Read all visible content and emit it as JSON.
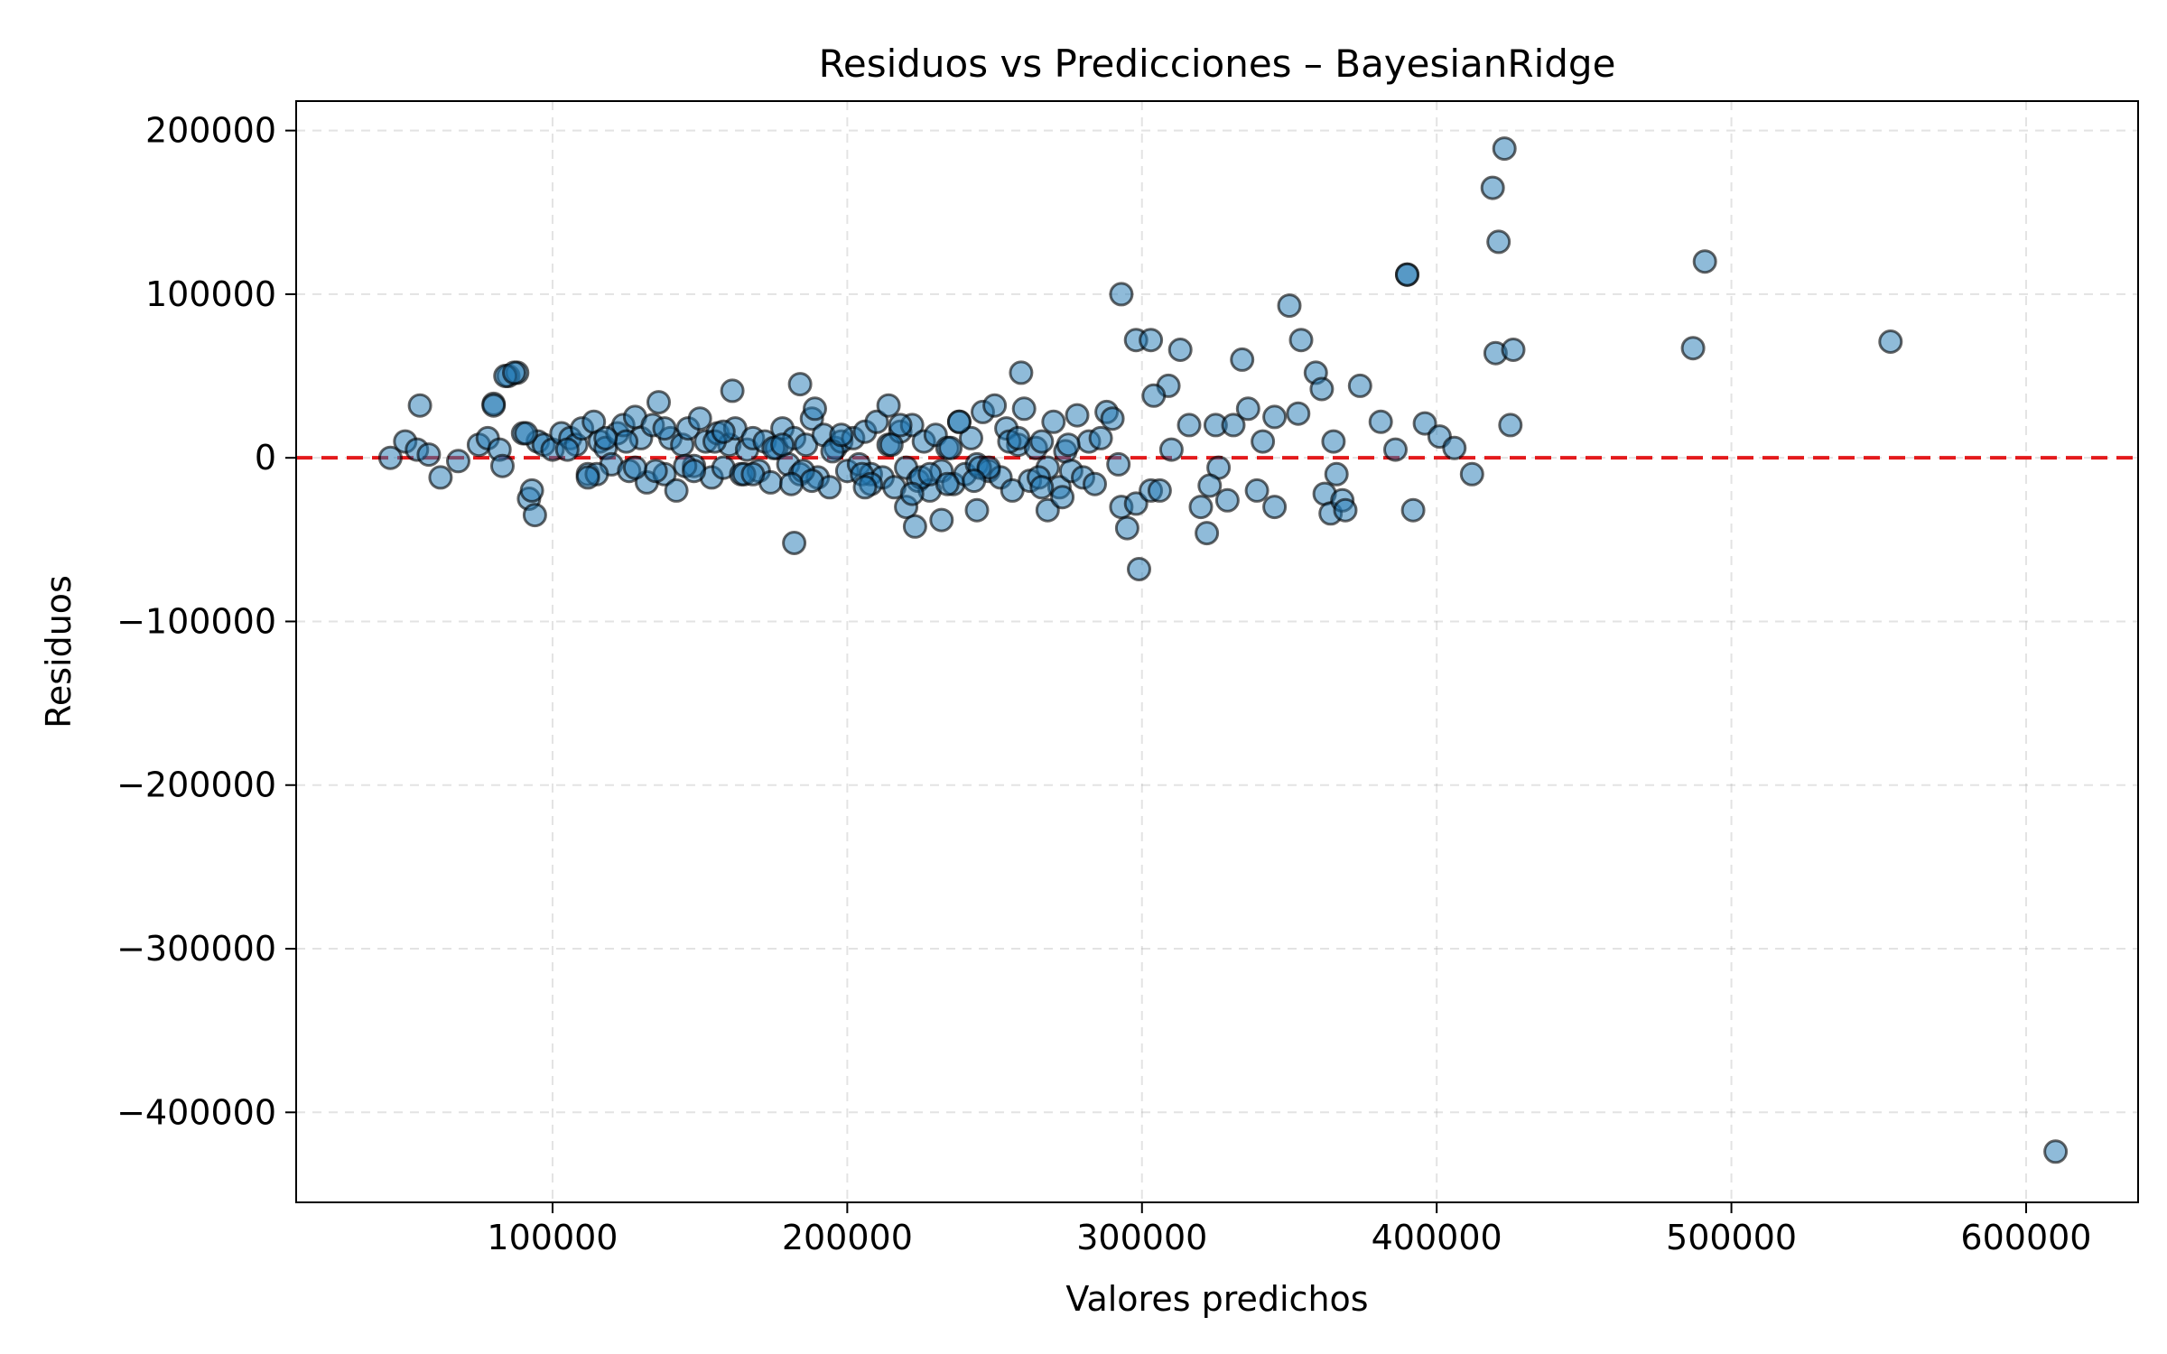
{
  "chart_data": {
    "type": "scatter",
    "title": "Residuos vs Predicciones – BayesianRidge",
    "xlabel": "Valores predichos",
    "ylabel": "Residuos",
    "xlim": [
      13000,
      638000
    ],
    "ylim": [
      -455000,
      218000
    ],
    "xticks": [
      100000,
      200000,
      300000,
      400000,
      500000,
      600000
    ],
    "yticks": [
      200000,
      100000,
      0,
      -100000,
      -200000,
      -300000,
      -400000
    ],
    "xtick_labels": [
      "100000",
      "200000",
      "300000",
      "400000",
      "500000",
      "600000"
    ],
    "ytick_labels": [
      "200000",
      "100000",
      "0",
      "−100000",
      "−200000",
      "−300000",
      "−400000"
    ],
    "grid": true,
    "marker_color": "#1f77b4",
    "marker_edge": "#000000",
    "reference_line": {
      "y": 0,
      "color": "#e41a1c",
      "style": "dashed"
    },
    "points": {
      "x": [
        45000,
        50000,
        55000,
        54000,
        58000,
        62000,
        68000,
        75000,
        78000,
        80000,
        82000,
        85000,
        88000,
        92000,
        93000,
        94000,
        95000,
        83000,
        90000,
        97000,
        100000,
        103000,
        106000,
        108000,
        110000,
        112000,
        114000,
        116000,
        118000,
        120000,
        122000,
        124000,
        126000,
        128000,
        130000,
        132000,
        134000,
        136000,
        138000,
        140000,
        142000,
        144000,
        146000,
        148000,
        150000,
        152000,
        154000,
        156000,
        158000,
        160000,
        162000,
        164000,
        166000,
        168000,
        170000,
        172000,
        174000,
        176000,
        178000,
        180000,
        182000,
        184000,
        186000,
        188000,
        190000,
        192000,
        194000,
        196000,
        198000,
        200000,
        202000,
        204000,
        206000,
        208000,
        210000,
        212000,
        214000,
        216000,
        218000,
        220000,
        222000,
        224000,
        226000,
        228000,
        230000,
        232000,
        234000,
        236000,
        238000,
        240000,
        242000,
        244000,
        246000,
        248000,
        250000,
        252000,
        254000,
        256000,
        258000,
        260000,
        262000,
        264000,
        266000,
        268000,
        270000,
        272000,
        274000,
        276000,
        278000,
        280000,
        282000,
        284000,
        286000,
        288000,
        290000,
        292000,
        105000,
        115000,
        125000,
        135000,
        145000,
        155000,
        165000,
        175000,
        185000,
        195000,
        205000,
        215000,
        225000,
        235000,
        245000,
        255000,
        265000,
        275000,
        112000,
        128000,
        148000,
        168000,
        188000,
        208000,
        228000,
        248000,
        118000,
        138000,
        158000,
        178000,
        198000,
        218000,
        238000,
        258000,
        84000,
        87000,
        80000,
        91000,
        161000,
        182000,
        184000,
        189000,
        214000,
        220000,
        223000,
        232000,
        244000,
        259000,
        268000,
        181000,
        206000,
        222000,
        234000,
        243000,
        266000,
        273000,
        293000,
        298000,
        303000,
        309000,
        313000,
        334000,
        350000,
        354000,
        359000,
        374000,
        390000,
        304000,
        310000,
        316000,
        325000,
        331000,
        336000,
        341000,
        345000,
        353000,
        361000,
        365000,
        381000,
        386000,
        396000,
        401000,
        406000,
        412000,
        293000,
        295000,
        298000,
        303000,
        306000,
        320000,
        322000,
        326000,
        329000,
        339000,
        345000,
        362000,
        364000,
        366000,
        368000,
        369000,
        392000,
        299000,
        323000,
        419000,
        421000,
        423000,
        420000,
        426000,
        425000,
        390000,
        487000,
        491000,
        554000,
        610000
      ],
      "y": [
        0,
        10000,
        32000,
        5000,
        2000,
        -12000,
        -2000,
        8000,
        12000,
        33000,
        5000,
        50000,
        52000,
        -25000,
        -20000,
        -35000,
        10000,
        -5000,
        15000,
        8000,
        5000,
        15000,
        12000,
        8000,
        18000,
        -10000,
        22000,
        10000,
        6000,
        -4000,
        15000,
        20000,
        -8000,
        25000,
        12000,
        -15000,
        20000,
        34000,
        -10000,
        12000,
        -20000,
        8000,
        18000,
        -5000,
        24000,
        10000,
        -12000,
        15000,
        -6000,
        8000,
        18000,
        -10000,
        5000,
        12000,
        -8000,
        10000,
        -15000,
        6000,
        18000,
        -4000,
        12000,
        -10000,
        8000,
        24000,
        -12000,
        14000,
        -18000,
        6000,
        10000,
        -8000,
        12000,
        -4000,
        16000,
        -10000,
        22000,
        -12000,
        8000,
        -18000,
        16000,
        -6000,
        20000,
        -14000,
        10000,
        -20000,
        14000,
        -8000,
        6000,
        -16000,
        22000,
        -10000,
        12000,
        -4000,
        28000,
        -8000,
        32000,
        -12000,
        18000,
        -20000,
        8000,
        30000,
        -14000,
        6000,
        10000,
        -6000,
        22000,
        -18000,
        4000,
        -8000,
        26000,
        -12000,
        10000,
        -16000,
        12000,
        28000,
        24000,
        -4000,
        5000,
        -10000,
        10000,
        -8000,
        -5000,
        10000,
        -10000,
        6000,
        -8000,
        4000,
        -10000,
        8000,
        -12000,
        6000,
        -6000,
        10000,
        -12000,
        8000,
        -12000,
        -6000,
        -8000,
        -10000,
        -14000,
        -16000,
        -10000,
        -6000,
        12000,
        18000,
        16000,
        8000,
        14000,
        20000,
        22000,
        12000,
        50000,
        52000,
        32000,
        15000,
        41000,
        -52000,
        45000,
        30000,
        32000,
        -30000,
        -42000,
        -38000,
        -32000,
        52000,
        -32000,
        -16000,
        -18000,
        -22000,
        -16000,
        -14000,
        -18000,
        -24000,
        100000,
        72000,
        72000,
        44000,
        66000,
        60000,
        93000,
        72000,
        52000,
        44000,
        112000,
        38000,
        5000,
        20000,
        20000,
        20000,
        30000,
        10000,
        25000,
        27000,
        42000,
        10000,
        22000,
        5000,
        21000,
        13000,
        6000,
        -10000,
        -30000,
        -43000,
        -28000,
        -20000,
        -20000,
        -30000,
        -46000,
        -6000,
        -26000,
        -20000,
        -30000,
        -22000,
        -34000,
        -10000,
        -26000,
        -32000,
        -32000,
        -68000,
        -17000,
        165000,
        132000,
        189000,
        64000,
        66000,
        20000,
        112000,
        67000,
        120000,
        71000,
        -424000
      ]
    }
  }
}
